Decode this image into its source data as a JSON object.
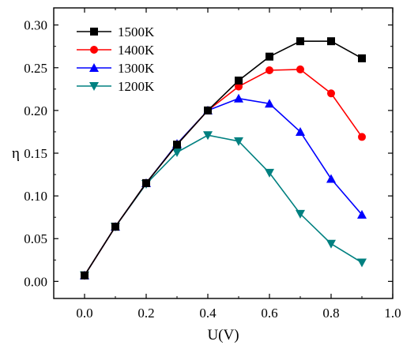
{
  "chart_data": {
    "type": "line",
    "xlabel": "U(V)",
    "ylabel": "η",
    "xlim": [
      -0.1,
      1.0
    ],
    "ylim": [
      -0.02,
      0.32
    ],
    "xticks": [
      0.0,
      0.2,
      0.4,
      0.6,
      0.8,
      1.0
    ],
    "xtick_labels": [
      "0.0",
      "0.2",
      "0.4",
      "0.6",
      "0.8",
      "1.0"
    ],
    "yticks": [
      0.0,
      0.05,
      0.1,
      0.15,
      0.2,
      0.25,
      0.3
    ],
    "ytick_labels": [
      "0.00",
      "0.05",
      "0.10",
      "0.15",
      "0.20",
      "0.25",
      "0.30"
    ],
    "grid": false,
    "legend_position": "top-left",
    "x": [
      0.0,
      0.1,
      0.2,
      0.3,
      0.4,
      0.5,
      0.6,
      0.7,
      0.8,
      0.9
    ],
    "series": [
      {
        "name": "1500K",
        "color": "#000000",
        "marker": "square",
        "values": [
          0.007,
          0.064,
          0.115,
          0.16,
          0.2,
          0.235,
          0.263,
          0.281,
          0.281,
          0.261
        ]
      },
      {
        "name": "1400K",
        "color": "#ff0000",
        "marker": "circle",
        "values": [
          0.007,
          0.064,
          0.115,
          0.16,
          0.2,
          0.228,
          0.247,
          0.248,
          0.22,
          0.169
        ]
      },
      {
        "name": "1300K",
        "color": "#0000ff",
        "marker": "triangle-up",
        "values": [
          0.007,
          0.064,
          0.115,
          0.161,
          0.2,
          0.214,
          0.208,
          0.175,
          0.12,
          0.078
        ]
      },
      {
        "name": "1200K",
        "color": "#008080",
        "marker": "triangle-down",
        "values": [
          0.007,
          0.064,
          0.114,
          0.151,
          0.171,
          0.164,
          0.127,
          0.079,
          0.044,
          0.022
        ]
      }
    ]
  }
}
